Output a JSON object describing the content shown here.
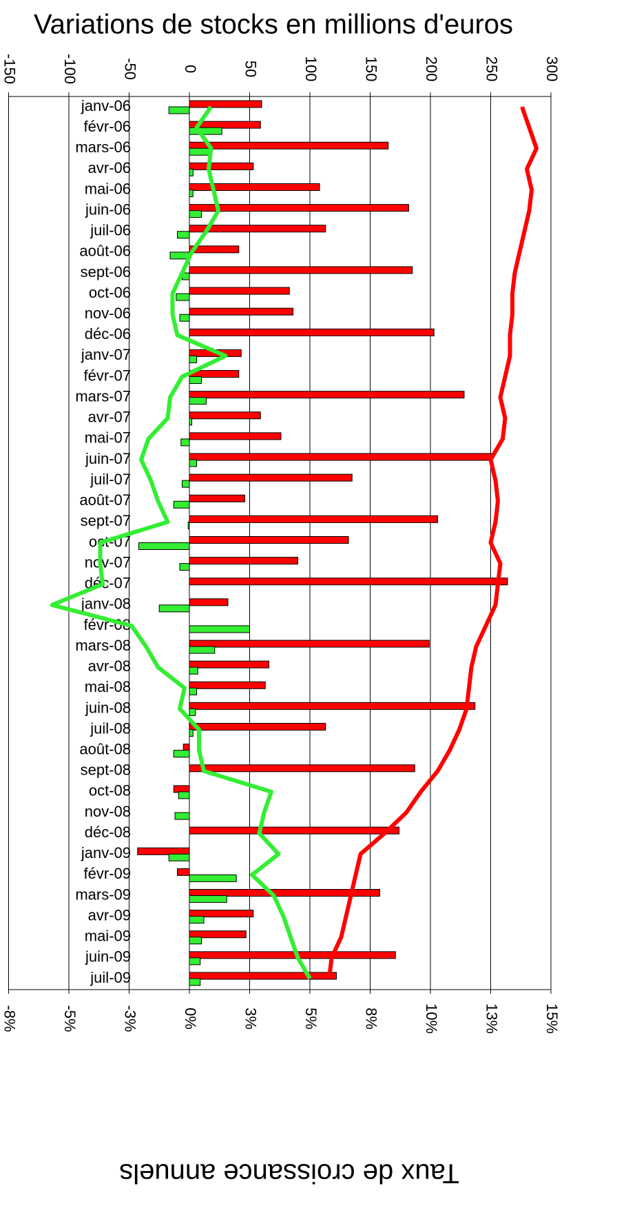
{
  "chart_data": {
    "type": "bar",
    "title": "Variations de stocks en millions d'euros",
    "x2_title": "Taux de croissance annuels",
    "categories": [
      "janv-06",
      "févr-06",
      "mars-06",
      "avr-06",
      "mai-06",
      "juin-06",
      "juil-06",
      "août-06",
      "sept-06",
      "oct-06",
      "nov-06",
      "déc-06",
      "janv-07",
      "févr-07",
      "mars-07",
      "avr-07",
      "mai-07",
      "juin-07",
      "juil-07",
      "août-07",
      "sept-07",
      "oct-07",
      "nov-07",
      "déc-07",
      "janv-08",
      "févr-08",
      "mars-08",
      "avr-08",
      "mai-08",
      "juin-08",
      "juil-08",
      "août-08",
      "sept-08",
      "oct-08",
      "nov-08",
      "déc-08",
      "janv-09",
      "févr-09",
      "mars-09",
      "avr-09",
      "mai-09",
      "juin-09",
      "juil-09"
    ],
    "xlim": [
      -150,
      300
    ],
    "xticks": [
      -150,
      -100,
      -50,
      0,
      50,
      100,
      150,
      200,
      250,
      300
    ],
    "x2lim": [
      -7.5,
      15
    ],
    "x2ticks": [
      {
        "value": -7.5,
        "label": "-8%"
      },
      {
        "value": -5,
        "label": "-5%"
      },
      {
        "value": -2.5,
        "label": "-3%"
      },
      {
        "value": 0,
        "label": "0%"
      },
      {
        "value": 2.5,
        "label": "3%"
      },
      {
        "value": 5,
        "label": "5%"
      },
      {
        "value": 7.5,
        "label": "8%"
      },
      {
        "value": 10,
        "label": "10%"
      },
      {
        "value": 12.5,
        "label": "13%"
      },
      {
        "value": 15,
        "label": "15%"
      }
    ],
    "grid": true,
    "series": [
      {
        "type": "bar",
        "color": "#ff0000",
        "values": [
          60,
          59,
          165,
          53,
          108,
          182,
          113,
          41,
          185,
          83,
          86,
          203,
          43,
          41,
          228,
          59,
          76,
          251,
          135,
          46,
          206,
          132,
          90,
          264,
          32,
          0,
          199,
          66,
          63,
          237,
          113,
          -5,
          187,
          -13,
          0,
          174,
          -43,
          -10,
          158,
          53,
          47,
          171,
          122
        ]
      },
      {
        "type": "bar",
        "color": "#33ee33",
        "values": [
          -17,
          27,
          18,
          3,
          3,
          10,
          -10,
          -16,
          -6,
          -11,
          -8,
          0,
          6,
          10,
          14,
          2,
          -7,
          6,
          -6,
          -13,
          -1,
          -42,
          -8,
          0,
          -25,
          50,
          21,
          7,
          6,
          5,
          3,
          -13,
          0,
          -9,
          -12,
          0,
          -17,
          39,
          31,
          12,
          10,
          9,
          9
        ]
      },
      {
        "type": "line",
        "axis": "x2",
        "color": "#ff0000",
        "values": [
          13.8,
          14.1,
          14.4,
          14.0,
          14.2,
          14.1,
          13.9,
          13.7,
          13.5,
          13.4,
          13.4,
          13.3,
          13.3,
          13.1,
          12.9,
          13.1,
          13.0,
          12.5,
          12.7,
          12.8,
          12.7,
          12.5,
          12.9,
          12.8,
          12.7,
          12.3,
          11.9,
          11.7,
          11.6,
          11.5,
          11.2,
          10.8,
          10.3,
          9.6,
          9.0,
          8.1,
          7.1,
          6.9,
          6.7,
          6.5,
          6.3,
          5.9,
          5.8
        ]
      },
      {
        "type": "line",
        "axis": "x2",
        "color": "#33ee33",
        "values": [
          0.9,
          0.3,
          0.9,
          0.8,
          1.0,
          1.2,
          0.7,
          0.1,
          -0.3,
          -0.7,
          -0.7,
          -0.5,
          1.5,
          -0.3,
          -0.8,
          -0.9,
          -1.7,
          -2.0,
          -1.6,
          -1.3,
          -0.9,
          -3.7,
          -3.7,
          -3.6,
          -5.7,
          -2.4,
          -1.8,
          -1.3,
          -0.2,
          -0.4,
          0.4,
          0.4,
          0.6,
          3.4,
          3.1,
          2.9,
          3.7,
          2.6,
          3.5,
          3.9,
          4.2,
          4.5,
          5.0
        ]
      }
    ]
  }
}
